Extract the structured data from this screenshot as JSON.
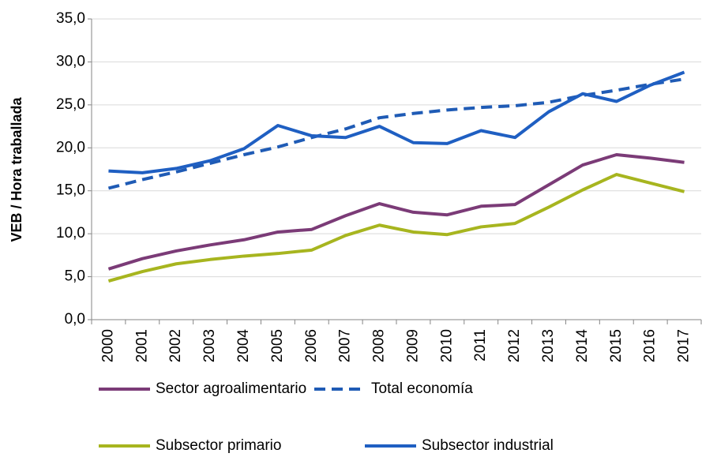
{
  "chart_data": {
    "type": "line",
    "ylabel": "VEB / Hora traballada",
    "categories": [
      "2000",
      "2001",
      "2002",
      "2003",
      "2004",
      "2005",
      "2006",
      "2007",
      "2008",
      "2009",
      "2010",
      "2011",
      "2012",
      "2013",
      "2014",
      "2015",
      "2016",
      "2017"
    ],
    "series": [
      {
        "name": "Sector agroalimentario",
        "color": "#7b3b77",
        "dash": false,
        "values": [
          5.9,
          7.1,
          8.0,
          8.7,
          9.3,
          10.2,
          10.5,
          12.1,
          13.5,
          12.5,
          12.2,
          13.2,
          13.4,
          15.7,
          18.0,
          19.2,
          18.8,
          18.3
        ]
      },
      {
        "name": "Total economía",
        "color": "#1f5bb5",
        "dash": true,
        "values": [
          15.3,
          16.3,
          17.2,
          18.2,
          19.2,
          20.1,
          21.2,
          22.2,
          23.5,
          24.0,
          24.4,
          24.7,
          24.9,
          25.3,
          26.1,
          26.7,
          27.4,
          28.0
        ]
      },
      {
        "name": "Subsector primario",
        "color": "#a7b51f",
        "dash": false,
        "values": [
          4.5,
          5.6,
          6.5,
          7.0,
          7.4,
          7.7,
          8.1,
          9.8,
          11.0,
          10.2,
          9.9,
          10.8,
          11.2,
          13.1,
          15.1,
          16.9,
          15.9,
          14.9
        ]
      },
      {
        "name": "Subsector industrial",
        "color": "#1f5fc2",
        "dash": false,
        "values": [
          17.3,
          17.1,
          17.6,
          18.5,
          19.9,
          22.6,
          21.4,
          21.2,
          22.5,
          20.6,
          20.5,
          22.0,
          21.2,
          24.2,
          26.3,
          25.4,
          27.3,
          28.8
        ]
      }
    ],
    "ylim": [
      0,
      35
    ],
    "yticks": [
      {
        "value": 0,
        "label": "0,0"
      },
      {
        "value": 5,
        "label": "5,0"
      },
      {
        "value": 10,
        "label": "10,0"
      },
      {
        "value": 15,
        "label": "15,0"
      },
      {
        "value": 20,
        "label": "20,0"
      },
      {
        "value": 25,
        "label": "25,0"
      },
      {
        "value": 30,
        "label": "30,0"
      },
      {
        "value": 35,
        "label": "35,0"
      }
    ],
    "grid": true,
    "legend": "bottom"
  }
}
